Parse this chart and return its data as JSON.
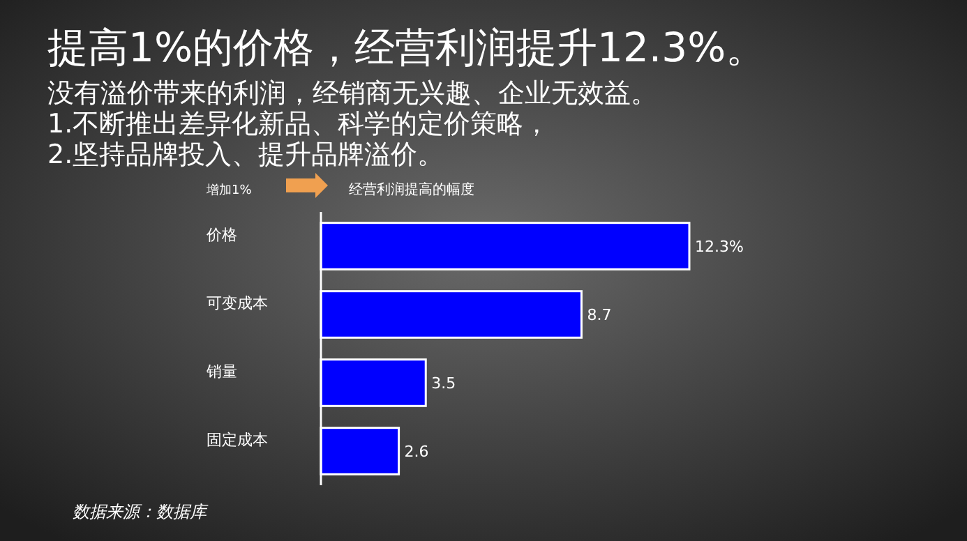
{
  "chart_data": {
    "type": "bar",
    "orientation": "horizontal",
    "title": "提高1%的价格，经营利润提升12.3%。",
    "subtitle": "没有溢价带来的利润，经销商无兴趣、企业无效益。\n1.不断推出差异化新品、科学的定价策略，\n2.坚持品牌投入、提升品牌溢价。",
    "categories": [
      "价格",
      "可变成本",
      "销量",
      "固定成本"
    ],
    "values": [
      12.3,
      8.7,
      3.5,
      2.6
    ],
    "value_labels": [
      "12.3%",
      "8.7",
      "3.5",
      "2.6"
    ],
    "color": "#0000ff",
    "annotations": [
      "增加1%",
      "经营利润提高的幅度",
      "数据来源：数据库"
    ]
  }
}
